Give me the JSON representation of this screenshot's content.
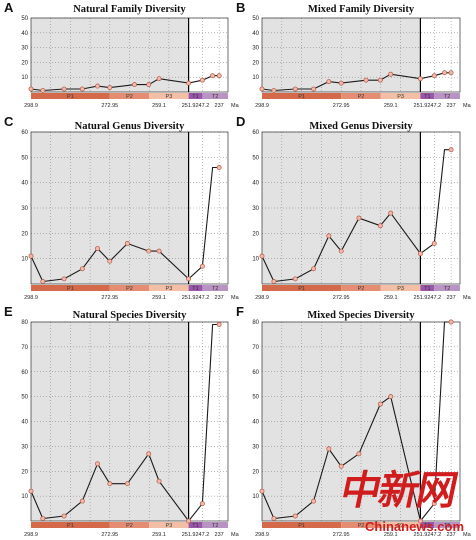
{
  "colors": {
    "shade": "#e2e2e2",
    "line": "#1a1a1a",
    "marker_fill": "#f3b9aa",
    "marker_stroke": "#b05848",
    "grid": "#7a7a7a",
    "boundary": "#000000",
    "periods": {
      "P1": "#d56a4a",
      "P2": "#e48d73",
      "P3": "#f2bfa6",
      "T1": "#9a56a8",
      "T2": "#b993c3"
    }
  },
  "x_ticks": [
    "298.9",
    "272.95",
    "259.1",
    "251.9",
    "247.2",
    "237",
    "Ma"
  ],
  "periods": [
    "P1",
    "P2",
    "P3",
    "T1",
    "T2"
  ],
  "watermark": {
    "cn": "中新网",
    "en": "Chinanews.com"
  },
  "chart_data": [
    {
      "panel": "A",
      "type": "line",
      "title": "Natural Family Diversity",
      "x": [
        298.9,
        295.0,
        288.0,
        282.0,
        277.0,
        272.95,
        266.0,
        262.0,
        259.1,
        251.9,
        247.2,
        241.0,
        237.0
      ],
      "y": [
        2,
        1,
        2,
        2,
        4,
        3,
        5,
        5,
        9,
        6,
        8,
        11,
        11
      ],
      "markers": [
        true,
        true,
        true,
        true,
        true,
        true,
        true,
        true,
        true,
        true,
        true,
        true,
        true
      ],
      "ylim": [
        0,
        50
      ],
      "yticks": [
        10,
        20,
        30,
        40,
        50
      ]
    },
    {
      "panel": "B",
      "type": "line",
      "title": "Mixed Family Diversity",
      "x": [
        298.9,
        295.0,
        288.0,
        282.0,
        277.0,
        272.95,
        266.0,
        262.0,
        259.1,
        251.9,
        247.2,
        241.0,
        237.0
      ],
      "y": [
        2,
        1,
        2,
        2,
        7,
        6,
        8,
        8,
        12,
        9,
        11,
        13,
        13
      ],
      "markers": [
        true,
        true,
        true,
        true,
        true,
        true,
        true,
        true,
        true,
        true,
        true,
        true,
        true
      ],
      "ylim": [
        0,
        50
      ],
      "yticks": [
        10,
        20,
        30,
        40,
        50
      ]
    },
    {
      "panel": "C",
      "type": "line",
      "title": "Natural Genus Diversity",
      "x": [
        298.9,
        295.0,
        288.0,
        282.0,
        277.0,
        272.95,
        268.0,
        262.0,
        259.1,
        251.9,
        247.2,
        241.0,
        237.0
      ],
      "y": [
        11,
        1,
        2,
        6,
        14,
        9,
        16,
        13,
        13,
        2,
        7,
        46,
        46
      ],
      "markers": [
        true,
        true,
        true,
        true,
        true,
        true,
        true,
        true,
        true,
        true,
        true,
        false,
        true
      ],
      "ylim": [
        0,
        60
      ],
      "yticks": [
        10,
        20,
        30,
        40,
        50,
        60
      ]
    },
    {
      "panel": "D",
      "type": "line",
      "title": "Mixed Genus Diversity",
      "x": [
        298.9,
        295.0,
        288.0,
        282.0,
        277.0,
        272.95,
        268.0,
        262.0,
        259.1,
        251.9,
        247.2,
        241.0,
        237.0
      ],
      "y": [
        11,
        1,
        2,
        6,
        19,
        13,
        26,
        23,
        28,
        12,
        16,
        53,
        53
      ],
      "markers": [
        true,
        true,
        true,
        true,
        true,
        true,
        true,
        true,
        true,
        true,
        true,
        false,
        true
      ],
      "ylim": [
        0,
        60
      ],
      "yticks": [
        10,
        20,
        30,
        40,
        50,
        60
      ]
    },
    {
      "panel": "E",
      "type": "line",
      "title": "Natural Species Diversity",
      "x": [
        298.9,
        295.0,
        288.0,
        282.0,
        277.0,
        272.95,
        268.0,
        262.0,
        259.1,
        251.9,
        247.2,
        241.0,
        237.0
      ],
      "y": [
        12,
        1,
        2,
        8,
        23,
        15,
        15,
        27,
        16,
        0,
        7,
        79,
        79
      ],
      "markers": [
        true,
        true,
        true,
        true,
        true,
        true,
        true,
        true,
        true,
        true,
        true,
        false,
        true
      ],
      "ylim": [
        0,
        80
      ],
      "yticks": [
        10,
        20,
        30,
        40,
        50,
        60,
        70,
        80
      ]
    },
    {
      "panel": "F",
      "type": "line",
      "title": "Mixed Species Diversity",
      "x": [
        298.9,
        295.0,
        288.0,
        282.0,
        277.0,
        272.95,
        268.0,
        262.0,
        259.1,
        251.9,
        247.2,
        241.0,
        237.0
      ],
      "y": [
        12,
        1,
        2,
        8,
        29,
        22,
        27,
        47,
        50,
        0,
        7,
        80,
        80
      ],
      "markers": [
        true,
        true,
        true,
        true,
        true,
        true,
        true,
        true,
        true,
        true,
        true,
        false,
        true
      ],
      "ylim": [
        0,
        80
      ],
      "yticks": [
        10,
        20,
        30,
        40,
        50,
        60,
        70,
        80
      ]
    }
  ]
}
